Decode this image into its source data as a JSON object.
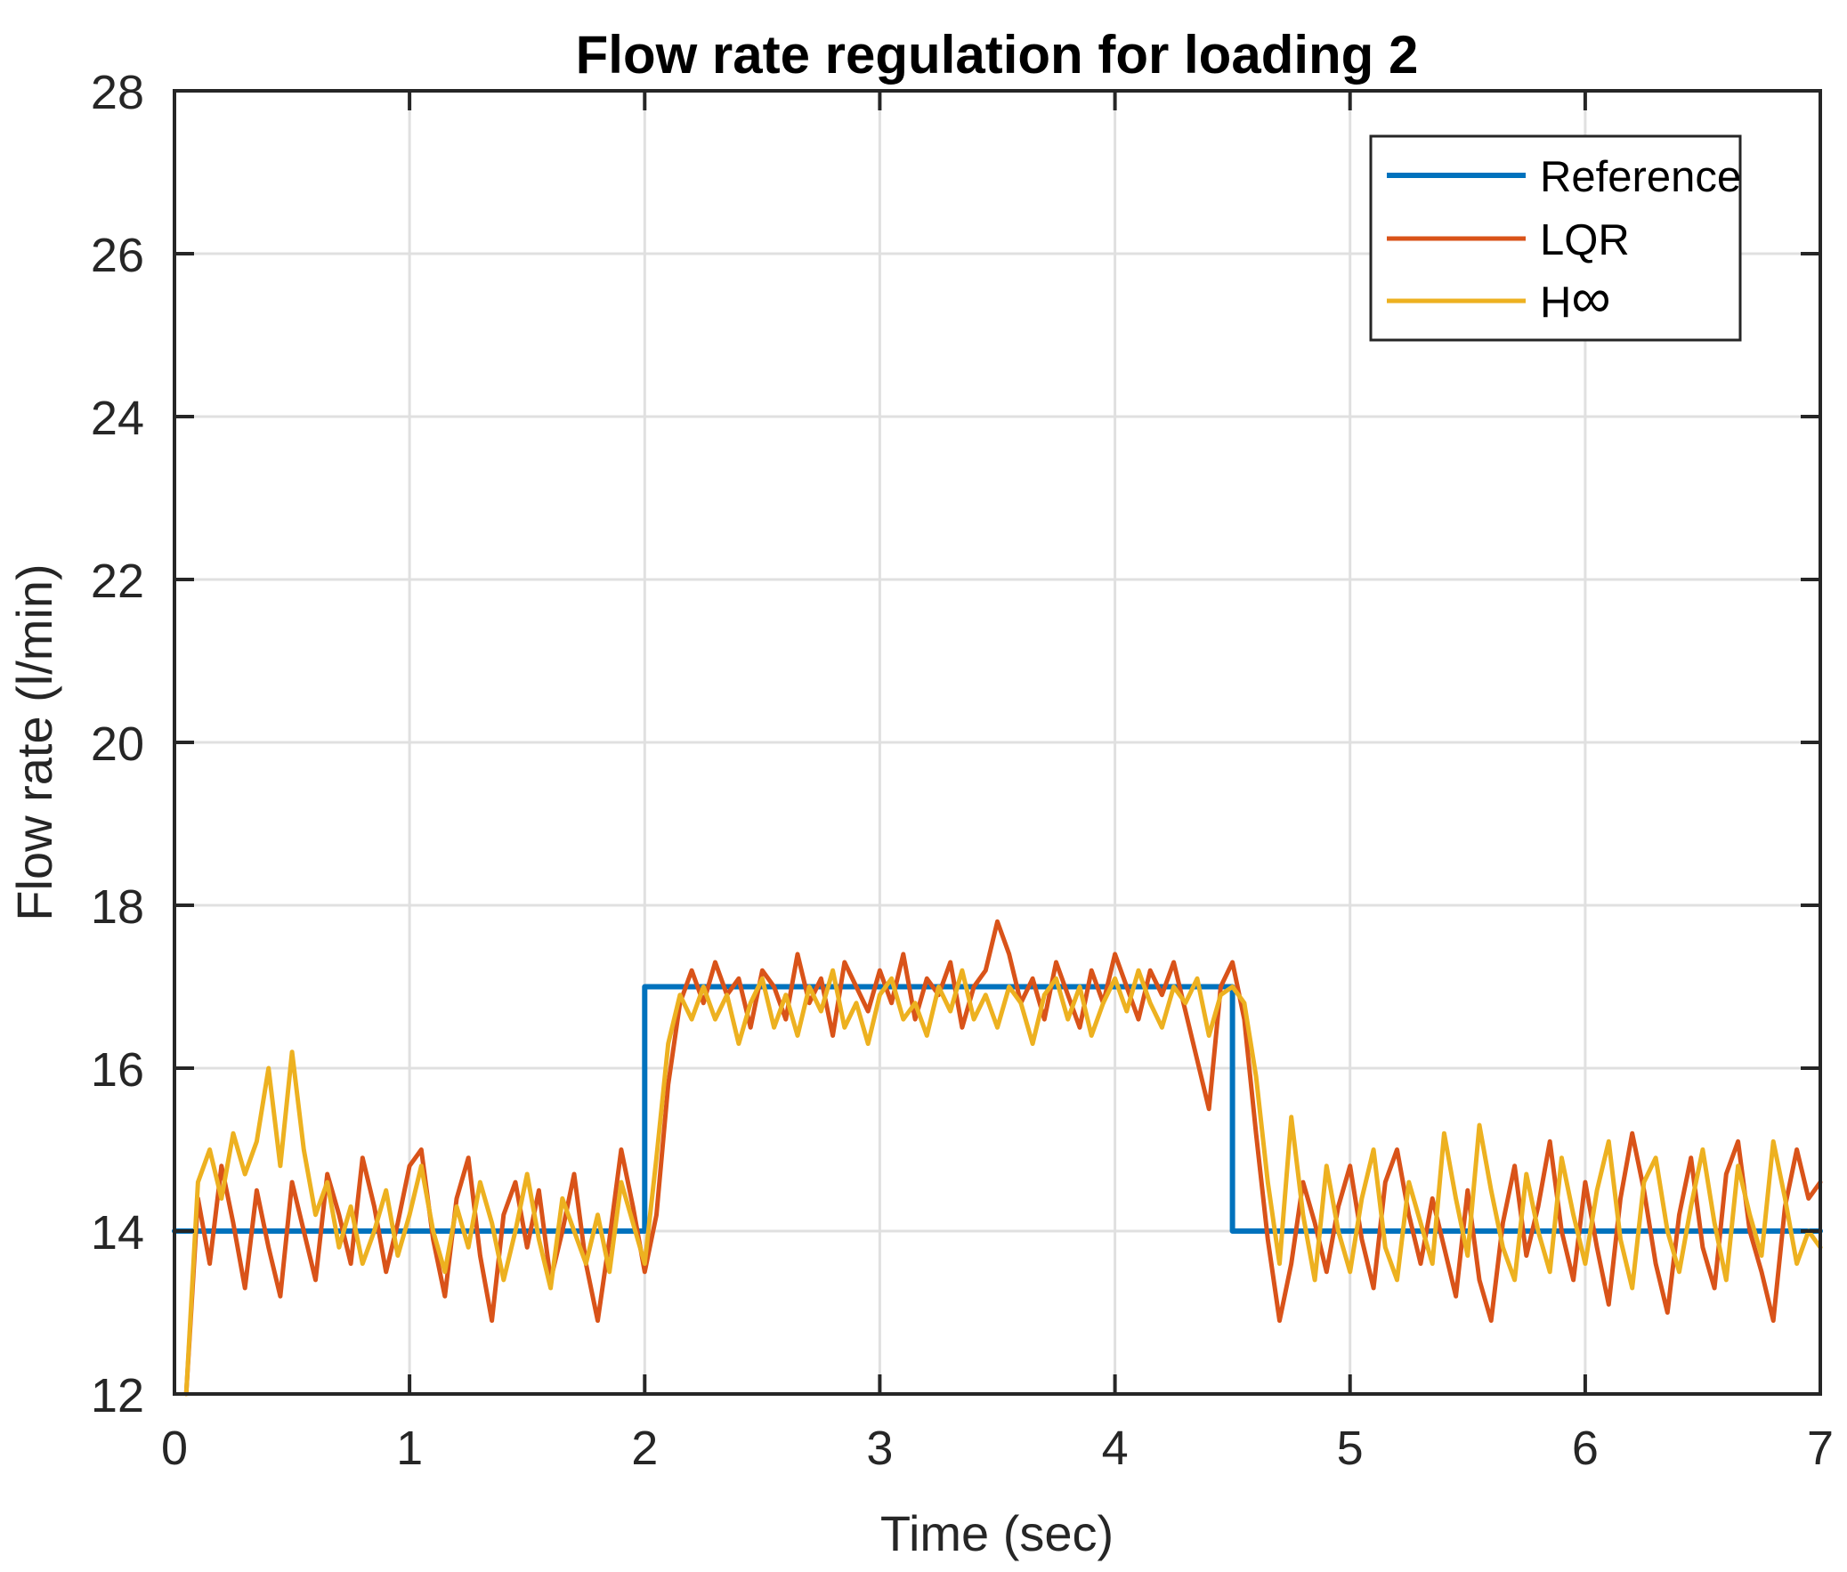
{
  "chart_data": {
    "type": "line",
    "title": "Flow rate regulation for loading 2",
    "xlabel": "Time (sec)",
    "ylabel": "Flow rate (l/min)",
    "xlim": [
      0,
      7
    ],
    "ylim": [
      12,
      28
    ],
    "xticks": [
      0,
      1,
      2,
      3,
      4,
      5,
      6,
      7
    ],
    "yticks": [
      12,
      14,
      16,
      18,
      20,
      22,
      24,
      26,
      28
    ],
    "grid": true,
    "grid_color": "#e0e0e0",
    "axis_color": "#262626",
    "title_color": "#000000",
    "background": "#ffffff",
    "legend": {
      "position": "top-right",
      "border_color": "#262626",
      "background": "#ffffff"
    },
    "series": [
      {
        "id": "reference",
        "name": "Reference",
        "color": "#0072BD",
        "width": 6,
        "points": [
          [
            0,
            14
          ],
          [
            2,
            14
          ],
          [
            2,
            17
          ],
          [
            4.5,
            17
          ],
          [
            4.5,
            14
          ],
          [
            7,
            14
          ]
        ]
      },
      {
        "id": "lqr",
        "name": "LQR",
        "color": "#D95319",
        "width": 5,
        "t_start": 0.05,
        "dt": 0.05,
        "values": [
          12.0,
          14.4,
          13.6,
          14.8,
          14.1,
          13.3,
          14.5,
          13.8,
          13.2,
          14.6,
          14.0,
          13.4,
          14.7,
          14.2,
          13.6,
          14.9,
          14.3,
          13.5,
          14.1,
          14.8,
          15.0,
          13.9,
          13.2,
          14.4,
          14.9,
          13.7,
          12.9,
          14.2,
          14.6,
          13.8,
          14.5,
          13.4,
          14.0,
          14.7,
          13.6,
          12.9,
          13.9,
          15.0,
          14.3,
          13.5,
          14.2,
          15.8,
          16.8,
          17.2,
          16.8,
          17.3,
          16.9,
          17.1,
          16.5,
          17.2,
          17.0,
          16.6,
          17.4,
          16.8,
          17.1,
          16.4,
          17.3,
          17.0,
          16.7,
          17.2,
          16.8,
          17.4,
          16.6,
          17.1,
          16.9,
          17.3,
          16.5,
          17.0,
          17.2,
          17.8,
          17.4,
          16.8,
          17.1,
          16.6,
          17.3,
          16.9,
          16.5,
          17.2,
          16.8,
          17.4,
          17.0,
          16.6,
          17.2,
          16.9,
          17.3,
          16.7,
          16.1,
          15.5,
          17.0,
          17.3,
          16.6,
          15.2,
          13.9,
          12.9,
          13.6,
          14.6,
          14.1,
          13.5,
          14.3,
          14.8,
          13.9,
          13.3,
          14.6,
          15.0,
          14.2,
          13.6,
          14.4,
          13.8,
          13.2,
          14.5,
          13.4,
          12.9,
          14.1,
          14.8,
          13.7,
          14.3,
          15.1,
          14.0,
          13.4,
          14.6,
          13.8,
          13.1,
          14.4,
          15.2,
          14.5,
          13.6,
          13.0,
          14.2,
          14.9,
          13.8,
          13.3,
          14.7,
          15.1,
          14.0,
          13.5,
          12.9,
          14.3,
          15.0,
          14.4,
          14.6
        ]
      },
      {
        "id": "hinf",
        "name": "H∞",
        "color": "#EDB120",
        "width": 5,
        "t_start": 0.05,
        "dt": 0.05,
        "values": [
          12.0,
          14.6,
          15.0,
          14.4,
          15.2,
          14.7,
          15.1,
          16.0,
          14.8,
          16.2,
          15.0,
          14.2,
          14.6,
          13.8,
          14.3,
          13.6,
          14.0,
          14.5,
          13.7,
          14.2,
          14.8,
          14.0,
          13.5,
          14.3,
          13.8,
          14.6,
          14.1,
          13.4,
          14.0,
          14.7,
          13.9,
          13.3,
          14.4,
          14.0,
          13.6,
          14.2,
          13.5,
          14.6,
          14.1,
          13.6,
          14.9,
          16.3,
          16.9,
          16.6,
          17.0,
          16.6,
          16.9,
          16.3,
          16.8,
          17.1,
          16.5,
          16.9,
          16.4,
          17.0,
          16.7,
          17.2,
          16.5,
          16.8,
          16.3,
          16.9,
          17.1,
          16.6,
          16.8,
          16.4,
          17.0,
          16.7,
          17.2,
          16.6,
          16.9,
          16.5,
          17.0,
          16.8,
          16.3,
          16.9,
          17.1,
          16.6,
          17.0,
          16.4,
          16.8,
          17.1,
          16.7,
          17.2,
          16.8,
          16.5,
          17.0,
          16.8,
          17.1,
          16.4,
          16.9,
          17.0,
          16.8,
          15.9,
          14.6,
          13.6,
          15.4,
          14.2,
          13.4,
          14.8,
          14.0,
          13.5,
          14.4,
          15.0,
          13.8,
          13.4,
          14.6,
          14.1,
          13.6,
          15.2,
          14.4,
          13.7,
          15.3,
          14.5,
          13.8,
          13.4,
          14.7,
          14.0,
          13.5,
          14.9,
          14.2,
          13.6,
          14.5,
          15.1,
          13.9,
          13.3,
          14.6,
          14.9,
          14.0,
          13.5,
          14.3,
          15.0,
          14.1,
          13.4,
          14.8,
          14.2,
          13.7,
          15.1,
          14.4,
          13.6,
          14.0,
          13.8
        ]
      }
    ]
  }
}
